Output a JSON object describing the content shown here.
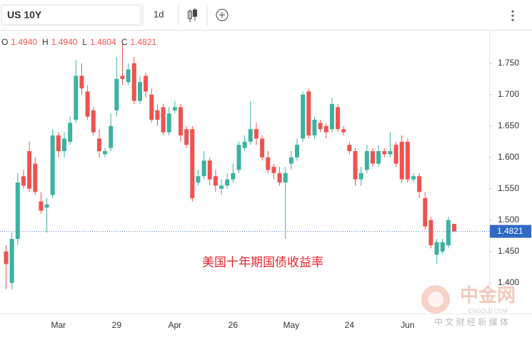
{
  "chart_data": {
    "type": "candlestick",
    "title": "US 10Y",
    "interval": "1d",
    "legend": [
      {
        "key": "O",
        "value": "1.4940"
      },
      {
        "key": "H",
        "value": "1.4940"
      },
      {
        "key": "L",
        "value": "1.4804"
      },
      {
        "key": "C",
        "value": "1.4821"
      }
    ],
    "annotation": "美国十年期国债收益率",
    "watermark": {
      "name": "中金网",
      "site": "CNGOLD.COM",
      "slogan": "中 文 财 经 新 媒 体"
    },
    "up_color": "#3bb3a0",
    "down_color": "#ef5350",
    "grid": false,
    "ylim": [
      1.351,
      1.802
    ],
    "yticks": [
      {
        "value": 1.4,
        "label": "1.400"
      },
      {
        "value": 1.45,
        "label": "1.450"
      },
      {
        "value": 1.5,
        "label": "1.500"
      },
      {
        "value": 1.55,
        "label": "1.550"
      },
      {
        "value": 1.6,
        "label": "1.600"
      },
      {
        "value": 1.65,
        "label": "1.650"
      },
      {
        "value": 1.7,
        "label": "1.700"
      },
      {
        "value": 1.75,
        "label": "1.750"
      }
    ],
    "categories": [
      null,
      null,
      null,
      null,
      null,
      null,
      null,
      null,
      null,
      "Mar",
      null,
      null,
      null,
      null,
      null,
      null,
      null,
      null,
      null,
      "29",
      null,
      null,
      null,
      null,
      null,
      null,
      null,
      null,
      null,
      "Apr",
      null,
      null,
      null,
      null,
      null,
      null,
      null,
      null,
      null,
      "26",
      null,
      null,
      null,
      null,
      null,
      null,
      null,
      null,
      null,
      "May",
      null,
      null,
      null,
      null,
      null,
      null,
      null,
      null,
      null,
      "24",
      null,
      null,
      null,
      null,
      null,
      null,
      null,
      null,
      null,
      "Jun",
      null,
      null,
      null,
      null,
      null,
      null,
      null,
      null
    ],
    "open": [
      1.45,
      1.4,
      1.47,
      1.57,
      1.61,
      1.59,
      1.53,
      1.52,
      1.54,
      1.635,
      1.61,
      1.625,
      1.66,
      1.73,
      1.705,
      1.675,
      1.63,
      1.605,
      1.615,
      1.675,
      1.73,
      1.72,
      1.75,
      1.69,
      1.73,
      1.7,
      1.675,
      1.68,
      1.64,
      1.675,
      1.68,
      1.645,
      1.645,
      1.56,
      1.57,
      1.595,
      1.57,
      1.55,
      1.555,
      1.565,
      1.58,
      1.615,
      1.625,
      1.645,
      1.63,
      1.6,
      1.585,
      1.575,
      1.56,
      1.59,
      1.6,
      1.63,
      1.705,
      1.635,
      1.655,
      1.65,
      1.645,
      1.68,
      1.645,
      1.62,
      1.61,
      1.565,
      1.58,
      1.61,
      1.59,
      1.61,
      1.605,
      1.62,
      1.625,
      1.625,
      1.565,
      1.57,
      1.535,
      1.5,
      1.445,
      1.45,
      1.46,
      1.494
    ],
    "high": [
      1.46,
      1.48,
      1.575,
      1.58,
      1.625,
      1.6,
      1.545,
      1.535,
      1.645,
      1.64,
      1.64,
      1.665,
      1.755,
      1.75,
      1.715,
      1.68,
      1.645,
      1.615,
      1.67,
      1.76,
      1.78,
      1.75,
      1.76,
      1.73,
      1.735,
      1.71,
      1.685,
      1.685,
      1.68,
      1.69,
      1.685,
      1.65,
      1.65,
      1.58,
      1.61,
      1.6,
      1.58,
      1.565,
      1.575,
      1.59,
      1.625,
      1.635,
      1.69,
      1.655,
      1.635,
      1.61,
      1.59,
      1.585,
      1.585,
      1.61,
      1.63,
      1.705,
      1.71,
      1.665,
      1.66,
      1.655,
      1.695,
      1.685,
      1.65,
      1.625,
      1.615,
      1.585,
      1.62,
      1.615,
      1.62,
      1.615,
      1.64,
      1.625,
      1.635,
      1.63,
      1.575,
      1.575,
      1.545,
      1.505,
      1.47,
      1.47,
      1.505,
      1.494
    ],
    "low": [
      1.39,
      1.39,
      1.46,
      1.55,
      1.545,
      1.54,
      1.51,
      1.48,
      1.535,
      1.6,
      1.6,
      1.62,
      1.655,
      1.7,
      1.66,
      1.635,
      1.6,
      1.6,
      1.61,
      1.665,
      1.715,
      1.715,
      1.685,
      1.685,
      1.695,
      1.655,
      1.65,
      1.635,
      1.635,
      1.67,
      1.625,
      1.615,
      1.53,
      1.555,
      1.565,
      1.555,
      1.545,
      1.54,
      1.55,
      1.56,
      1.575,
      1.61,
      1.62,
      1.62,
      1.595,
      1.575,
      1.565,
      1.555,
      1.47,
      1.58,
      1.595,
      1.625,
      1.63,
      1.63,
      1.64,
      1.63,
      1.64,
      1.64,
      1.635,
      1.605,
      1.555,
      1.555,
      1.575,
      1.585,
      1.585,
      1.6,
      1.6,
      1.585,
      1.56,
      1.56,
      1.56,
      1.535,
      1.485,
      1.455,
      1.43,
      1.445,
      1.455,
      1.4804
    ],
    "close": [
      1.43,
      1.47,
      1.56,
      1.555,
      1.55,
      1.545,
      1.515,
      1.525,
      1.635,
      1.61,
      1.63,
      1.655,
      1.73,
      1.71,
      1.665,
      1.64,
      1.61,
      1.61,
      1.65,
      1.725,
      1.725,
      1.74,
      1.69,
      1.72,
      1.705,
      1.66,
      1.66,
      1.64,
      1.67,
      1.68,
      1.635,
      1.62,
      1.535,
      1.57,
      1.595,
      1.565,
      1.555,
      1.555,
      1.565,
      1.575,
      1.62,
      1.625,
      1.645,
      1.63,
      1.6,
      1.58,
      1.575,
      1.56,
      1.575,
      1.6,
      1.62,
      1.7,
      1.635,
      1.66,
      1.645,
      1.64,
      1.685,
      1.645,
      1.64,
      1.61,
      1.565,
      1.575,
      1.61,
      1.59,
      1.61,
      1.605,
      1.61,
      1.59,
      1.565,
      1.565,
      1.57,
      1.545,
      1.49,
      1.46,
      1.465,
      1.465,
      1.5,
      1.4821
    ]
  }
}
